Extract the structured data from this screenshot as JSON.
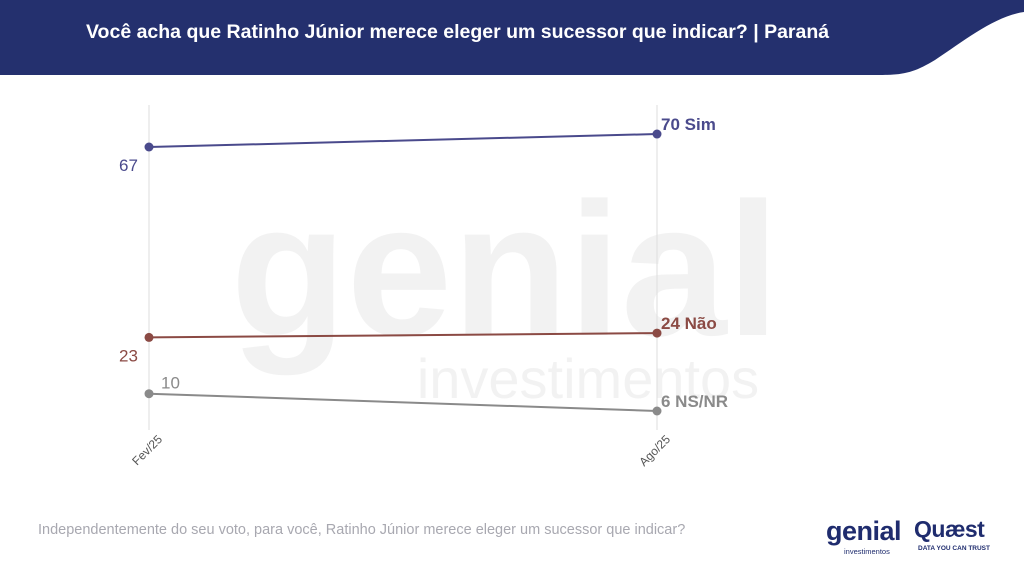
{
  "header": {
    "title": "Você acha que Ratinho Júnior merece eleger um sucessor que indicar? | Paraná",
    "bg_color": "#24306e"
  },
  "footer": {
    "question": "Independentemente do seu voto, para você, Ratinho Júnior merece eleger um sucessor que indicar?"
  },
  "watermark": {
    "line1": "genial",
    "line2": "investimentos"
  },
  "logos": {
    "genial": {
      "word": "genial",
      "sub": "investimentos"
    },
    "quaest": {
      "word": "Quæst",
      "sub": "DATA YOU CAN TRUST"
    }
  },
  "chart_data": {
    "type": "line",
    "categories": [
      "Fev/25",
      "Ago/25"
    ],
    "series": [
      {
        "name": "Sim",
        "values": [
          67,
          70
        ],
        "color": "#4a4a8c",
        "end_label": "70 Sim",
        "start_label": "67"
      },
      {
        "name": "Não",
        "values": [
          23,
          24
        ],
        "color": "#8b4a44",
        "end_label": "24 Não",
        "start_label": "23"
      },
      {
        "name": "NS/NR",
        "values": [
          10,
          6
        ],
        "color": "#8a8a8a",
        "end_label": "6 NS/NR",
        "start_label": "10"
      }
    ],
    "ylim": [
      0,
      100
    ],
    "grid": "vertical",
    "legend": "none"
  }
}
